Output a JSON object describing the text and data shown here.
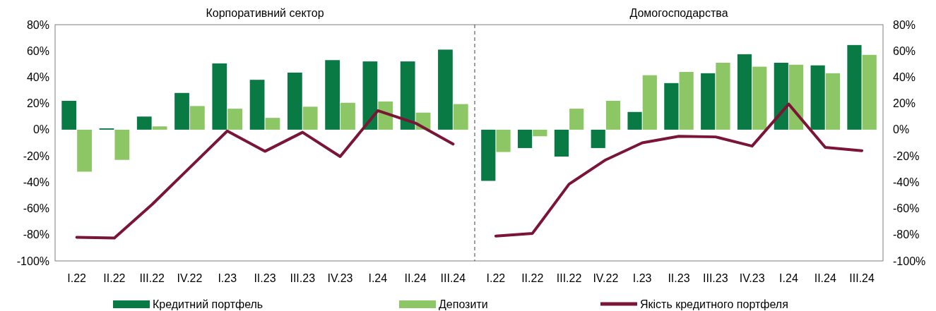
{
  "chart_data": [
    {
      "type": "bar",
      "title": "Корпоративний сектор",
      "categories": [
        "I.22",
        "II.22",
        "III.22",
        "IV.22",
        "I.23",
        "II.23",
        "III.23",
        "IV.23",
        "I.24",
        "II.24",
        "III.24"
      ],
      "series": [
        {
          "name": "Кредитний портфель",
          "color": "#0a7a45",
          "values": [
            22,
            1,
            10,
            28,
            50.5,
            38,
            43.5,
            53,
            52,
            52,
            61
          ]
        },
        {
          "name": "Депозити",
          "color": "#8cc665",
          "values": [
            -32,
            -23,
            2.5,
            18,
            16,
            9,
            17.5,
            20.5,
            21.5,
            13,
            19.5
          ]
        },
        {
          "name": "Якість кредитного портфеля",
          "type": "line",
          "color": "#7b1535",
          "values": [
            -82,
            -82.5,
            -57,
            -29,
            -1,
            -16.5,
            -2,
            -20.5,
            14.5,
            5,
            -11
          ]
        }
      ],
      "ylim": [
        -100,
        80
      ],
      "yticks": [
        {
          "value": -100,
          "label": "-100%"
        },
        {
          "value": -80,
          "label": "-80%"
        },
        {
          "value": -60,
          "label": "-60%"
        },
        {
          "value": -40,
          "label": "-40%"
        },
        {
          "value": -20,
          "label": "-20%"
        },
        {
          "value": 0,
          "label": "0%"
        },
        {
          "value": 20,
          "label": "20%"
        },
        {
          "value": 40,
          "label": "40%"
        },
        {
          "value": 60,
          "label": "60%"
        },
        {
          "value": 80,
          "label": "80%"
        }
      ],
      "legend": "bottom"
    },
    {
      "type": "bar",
      "title": "Домогосподарства",
      "categories": [
        "I.22",
        "II.22",
        "III.22",
        "IV.22",
        "I.23",
        "II.23",
        "III.23",
        "IV.23",
        "I.24",
        "II.24",
        "III.24"
      ],
      "series": [
        {
          "color": "#0a7a45",
          "values": [
            -39,
            -14,
            -20.5,
            -14,
            13.5,
            35.5,
            43,
            57.5,
            51,
            49,
            64.5
          ]
        },
        {
          "color": "#8cc665",
          "values": [
            -17,
            -5,
            16,
            22,
            41.5,
            44,
            51,
            48,
            49.5,
            43,
            57
          ]
        },
        {
          "type": "line",
          "color": "#7b1535",
          "values": [
            -81,
            -79,
            -41.5,
            -23,
            -10,
            -5,
            -5.5,
            -12.5,
            19.5,
            -13.5,
            -16
          ]
        }
      ],
      "ylim": [
        -100,
        80
      ],
      "yticks": [
        {
          "value": -100,
          "label": "-100%"
        },
        {
          "value": -80,
          "label": "-80%"
        },
        {
          "value": -60,
          "label": "-60%"
        },
        {
          "value": -40,
          "label": "-40%"
        },
        {
          "value": -20,
          "label": "-20%"
        },
        {
          "value": 0,
          "label": "0%"
        },
        {
          "value": 20,
          "label": "20%"
        },
        {
          "value": 40,
          "label": "40%"
        },
        {
          "value": 60,
          "label": "60%"
        },
        {
          "value": 80,
          "label": "80%"
        }
      ]
    }
  ]
}
